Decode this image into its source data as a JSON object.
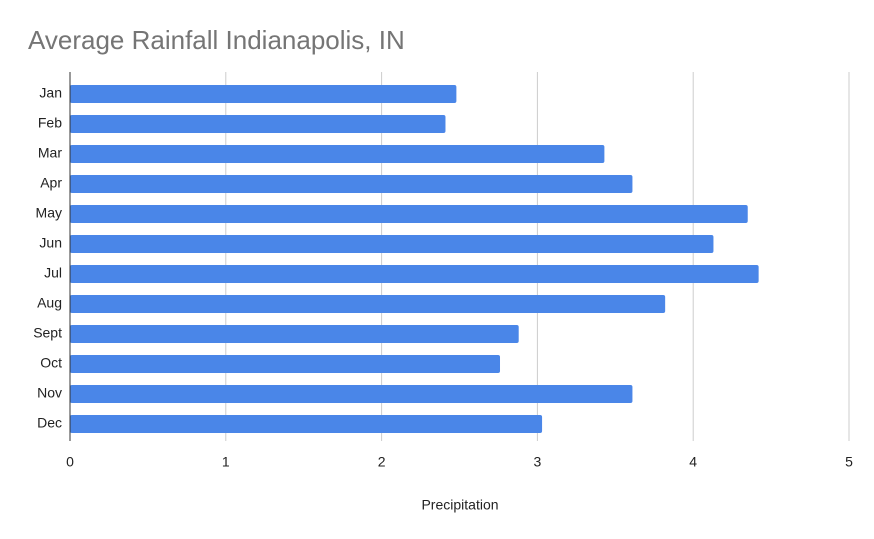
{
  "chart_data": {
    "type": "bar",
    "orientation": "horizontal",
    "title": "Average Rainfall Indianapolis, IN",
    "x_label": "Precipitation",
    "categories": [
      "Jan",
      "Feb",
      "Mar",
      "Apr",
      "May",
      "Jun",
      "Jul",
      "Aug",
      "Sept",
      "Oct",
      "Nov",
      "Dec"
    ],
    "values": [
      2.48,
      2.41,
      3.43,
      3.61,
      4.35,
      4.13,
      4.42,
      3.82,
      2.88,
      2.76,
      3.61,
      3.03
    ],
    "color": "#4a86e8",
    "xlim": [
      0,
      5
    ],
    "xticks": [
      0,
      1,
      2,
      3,
      4,
      5
    ],
    "grid": true
  }
}
